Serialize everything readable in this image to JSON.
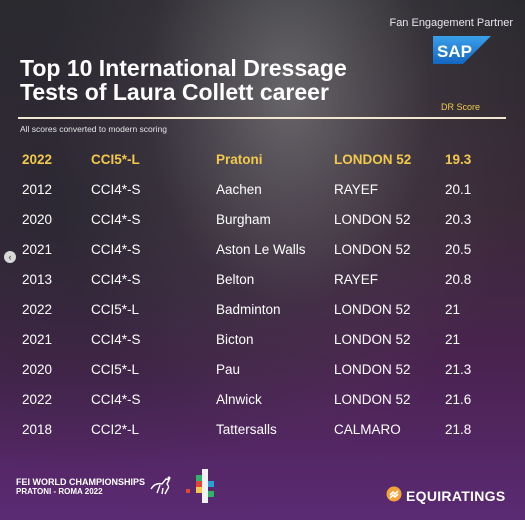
{
  "partner_label": "Fan Engagement Partner",
  "sponsor_logo_text": "SAP",
  "title_line1": "Top 10 International Dressage",
  "title_line2": "Tests of Laura Collett career",
  "score_header": "DR Score",
  "note": "All scores converted to modern scoring",
  "rows": [
    {
      "year": "2022",
      "class": "CCI5*-L",
      "venue": "Pratoni",
      "horse": "LONDON 52",
      "score": "19.3"
    },
    {
      "year": "2012",
      "class": "CCI4*-S",
      "venue": "Aachen",
      "horse": "RAYEF",
      "score": "20.1"
    },
    {
      "year": "2020",
      "class": "CCI4*-S",
      "venue": "Burgham",
      "horse": "LONDON 52",
      "score": "20.3"
    },
    {
      "year": "2021",
      "class": "CCI4*-S",
      "venue": "Aston Le Walls",
      "horse": "LONDON 52",
      "score": "20.5"
    },
    {
      "year": "2013",
      "class": "CCI4*-S",
      "venue": "Belton",
      "horse": "RAYEF",
      "score": "20.8"
    },
    {
      "year": "2022",
      "class": "CCI5*-L",
      "venue": "Badminton",
      "horse": "LONDON 52",
      "score": "21"
    },
    {
      "year": "2021",
      "class": "CCI4*-S",
      "venue": "Bicton",
      "horse": "LONDON 52",
      "score": "21"
    },
    {
      "year": "2020",
      "class": "CCI5*-L",
      "venue": "Pau",
      "horse": "LONDON 52",
      "score": "21.3"
    },
    {
      "year": "2022",
      "class": "CCI4*-S",
      "venue": "Alnwick",
      "horse": "LONDON 52",
      "score": "21.6"
    },
    {
      "year": "2018",
      "class": "CCI2*-L",
      "venue": "Tattersalls",
      "horse": "CALMARO",
      "score": "21.8"
    }
  ],
  "footer": {
    "event_line1": "FEI WORLD CHAMPIONSHIPS",
    "event_line2": "PRATONI - ROMA  2022",
    "brand": "EQUIRATINGS"
  },
  "pager": {
    "prev_icon": "chevron-left-icon",
    "slides": 2,
    "active_slide": 1
  },
  "colors": {
    "accent": "#f2c94c",
    "sap_blue": "#1e86d6"
  }
}
